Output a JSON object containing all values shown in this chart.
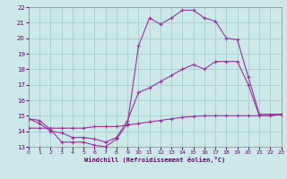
{
  "xlabel": "Windchill (Refroidissement éolien,°C)",
  "xlim": [
    0,
    23
  ],
  "ylim": [
    13,
    22
  ],
  "bg_color": "#cce8e8",
  "line_color": "#993399",
  "grid_color": "#a0c8c8",
  "line1_y": [
    14.8,
    14.7,
    14.1,
    13.3,
    13.3,
    13.3,
    13.1,
    13.0,
    13.5,
    14.5,
    19.5,
    21.3,
    20.9,
    21.3,
    21.8,
    21.8,
    21.3,
    21.1,
    20.0,
    19.9,
    17.5,
    15.1,
    15.1,
    15.1
  ],
  "line2_y": [
    14.8,
    14.5,
    14.0,
    13.9,
    13.6,
    13.6,
    13.5,
    13.3,
    13.6,
    14.7,
    16.5,
    16.8,
    17.2,
    17.6,
    18.0,
    18.3,
    18.0,
    18.5,
    18.5,
    18.5,
    17.0,
    15.0,
    15.0,
    15.1
  ],
  "line3_y": [
    14.2,
    14.2,
    14.2,
    14.2,
    14.2,
    14.2,
    14.3,
    14.3,
    14.3,
    14.4,
    14.5,
    14.6,
    14.7,
    14.8,
    14.9,
    14.95,
    15.0,
    15.0,
    15.0,
    15.0,
    15.0,
    15.0,
    15.0,
    15.1
  ],
  "xticks": [
    0,
    1,
    2,
    3,
    4,
    5,
    6,
    7,
    8,
    9,
    10,
    11,
    12,
    13,
    14,
    15,
    16,
    17,
    18,
    19,
    20,
    21,
    22,
    23
  ],
  "yticks": [
    13,
    14,
    15,
    16,
    17,
    18,
    19,
    20,
    21,
    22
  ]
}
